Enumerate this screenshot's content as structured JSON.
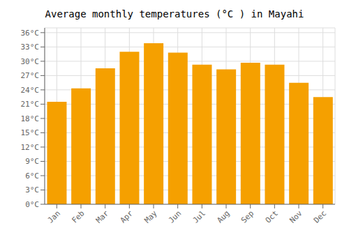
{
  "chart_data": {
    "type": "bar",
    "title": "Average monthly temperatures (°C ) in Mayahi",
    "categories": [
      "Jan",
      "Feb",
      "Mar",
      "Apr",
      "May",
      "Jun",
      "Jul",
      "Aug",
      "Sep",
      "Oct",
      "Nov",
      "Dec"
    ],
    "values": [
      21.5,
      24.3,
      28.5,
      32.0,
      33.8,
      31.8,
      29.3,
      28.3,
      29.7,
      29.3,
      25.5,
      22.5
    ],
    "color": "#F5A000",
    "ylim": [
      0,
      37
    ],
    "yticks": [
      {
        "value": 0,
        "label": "0°C"
      },
      {
        "value": 3,
        "label": "3°C"
      },
      {
        "value": 6,
        "label": "6°C"
      },
      {
        "value": 9,
        "label": "9°C"
      },
      {
        "value": 12,
        "label": "12°C"
      },
      {
        "value": 15,
        "label": "15°C"
      },
      {
        "value": 18,
        "label": "18°C"
      },
      {
        "value": 21,
        "label": "21°C"
      },
      {
        "value": 24,
        "label": "24°C"
      },
      {
        "value": 27,
        "label": "27°C"
      },
      {
        "value": 30,
        "label": "30°C"
      },
      {
        "value": 33,
        "label": "33°C"
      },
      {
        "value": 36,
        "label": "36°C"
      }
    ],
    "grid": true
  }
}
